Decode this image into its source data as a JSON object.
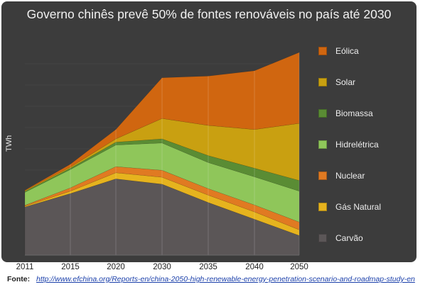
{
  "chart_data": {
    "type": "area",
    "stacked": true,
    "title": "Governo chinês prevê 50% de fontes renováveis no país até 2030",
    "ylabel": "TWh",
    "xlabel": "",
    "categories": [
      "2011",
      "2015",
      "2020",
      "2030",
      "2035",
      "2040",
      "2050"
    ],
    "series": [
      {
        "name": "Carvão",
        "color": "#5b5657",
        "values": [
          11.8,
          15.1,
          18.7,
          17.4,
          12.9,
          8.8,
          4.8
        ]
      },
      {
        "name": "Gás Natural",
        "color": "#e6b31e",
        "values": [
          0.2,
          0.6,
          1.5,
          1.7,
          1.8,
          1.8,
          1.4
        ]
      },
      {
        "name": "Nuclear",
        "color": "#e07a22",
        "values": [
          0.2,
          0.8,
          1.5,
          1.7,
          1.6,
          1.7,
          1.9
        ]
      },
      {
        "name": "Hidrelétrica",
        "color": "#8fc65a",
        "values": [
          3.2,
          4.5,
          5.3,
          6.7,
          6.4,
          6.9,
          7.6
        ]
      },
      {
        "name": "Biomassa",
        "color": "#5a8c34",
        "values": [
          0.2,
          0.3,
          0.7,
          1.0,
          1.7,
          2.1,
          2.6
        ]
      },
      {
        "name": "Solar",
        "color": "#c9a011",
        "values": [
          0.2,
          0.3,
          0.8,
          5.0,
          7.4,
          9.5,
          14.0
        ]
      },
      {
        "name": "Eólica",
        "color": "#d06610",
        "values": [
          0.1,
          0.7,
          2.3,
          10.0,
          12.1,
          14.4,
          17.4
        ]
      }
    ],
    "legend_order": [
      "Eólica",
      "Solar",
      "Biomassa",
      "Hidrelétrica",
      "Nuclear",
      "Gás Natural",
      "Carvão"
    ],
    "legend_position": "right",
    "grid": true
  },
  "footer": {
    "source_label": "Fonte:",
    "source_url": "http://www.efchina.org/Reports-en/china-2050-high-renewable-energy-penetration-scenario-and-roadmap-study-en"
  }
}
